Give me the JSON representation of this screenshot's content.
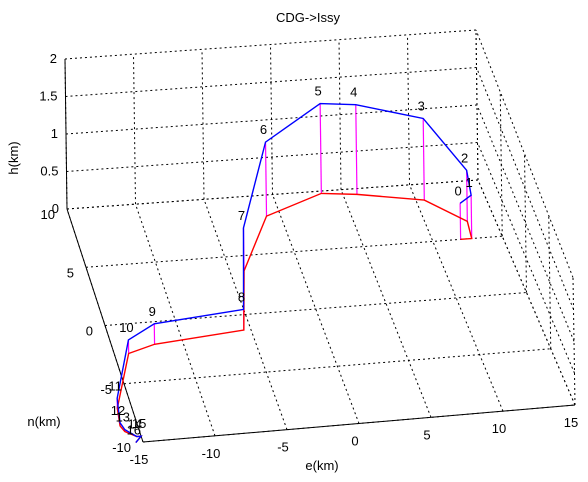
{
  "chart_data": {
    "type": "line",
    "title": "CDG->Issy",
    "xlabel": "e(km)",
    "ylabel": "n(km)",
    "zlabel": "h(km)",
    "xlim": [
      -15,
      15
    ],
    "ylim": [
      -10,
      10
    ],
    "zlim": [
      0,
      2
    ],
    "x_ticks": [
      "-15",
      "-10",
      "-5",
      "0",
      "5",
      "10",
      "15"
    ],
    "y_ticks": [
      "-10",
      "-5",
      "0",
      "5",
      "10"
    ],
    "z_ticks": [
      "0",
      "0.5",
      "1",
      "1.5",
      "2"
    ],
    "grid": true,
    "series": [
      {
        "role": "trajectory",
        "color": "#0000ff",
        "points": [
          {
            "label": "0",
            "e": 12,
            "n": 5,
            "h": 0.5
          },
          {
            "label": "1",
            "e": 12.8,
            "n": 5,
            "h": 0.6
          },
          {
            "label": "2",
            "e": 13,
            "n": 6.5,
            "h": 0.7
          },
          {
            "label": "3",
            "e": 10.6,
            "n": 8.6,
            "h": 1.1
          },
          {
            "label": "4",
            "e": 6,
            "n": 9.5,
            "h": 1.2
          },
          {
            "label": "5",
            "e": 3.5,
            "n": 9.8,
            "h": 1.2
          },
          {
            "label": "6",
            "e": -1,
            "n": 8.2,
            "h": 1.0
          },
          {
            "label": "7",
            "e": -4,
            "n": 3.7,
            "h": 0.6
          },
          {
            "label": "8",
            "e": -5.5,
            "n": -1.3,
            "h": 0.3
          },
          {
            "label": "9",
            "e": -12,
            "n": -1.9,
            "h": 0.3
          },
          {
            "label": "10",
            "e": -14,
            "n": -2.5,
            "h": 0.2
          },
          {
            "label": "11",
            "e": -16,
            "n": -7,
            "h": 0.15
          },
          {
            "label": "12",
            "e": -16.2,
            "n": -8.5,
            "h": 0.05
          },
          {
            "label": "13",
            "e": -16,
            "n": -9,
            "h": 0.03
          },
          {
            "label": "14",
            "e": -15.3,
            "n": -9.5,
            "h": 0.0
          },
          {
            "label": "15",
            "e": -15,
            "n": -9.5,
            "h": 0.0
          },
          {
            "label": "16",
            "e": -15.5,
            "n": -10,
            "h": 0.0
          }
        ]
      },
      {
        "role": "ground-track",
        "color": "#ff0000"
      }
    ],
    "drop_lines_color": "#ff00ff"
  }
}
